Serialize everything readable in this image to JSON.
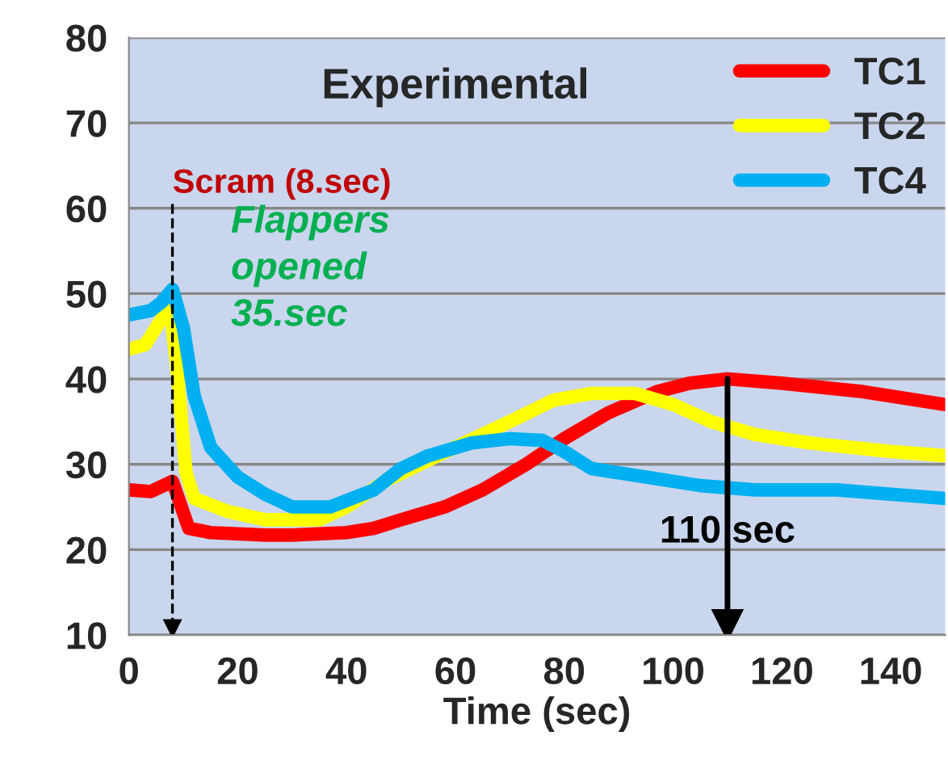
{
  "chart_data": {
    "type": "line",
    "title": "Experimental",
    "xlabel": "Time (sec)",
    "xlim": [
      0,
      150
    ],
    "xticks": [
      0,
      20,
      40,
      60,
      80,
      100,
      120,
      140
    ],
    "ylim": [
      10,
      80
    ],
    "yticks": [
      10,
      20,
      30,
      40,
      50,
      60,
      70,
      80
    ],
    "grid": "y",
    "legend": "top right",
    "line_style": "solid",
    "marker": "none",
    "series": [
      {
        "name": "TC1",
        "color": "#ff0000",
        "x": [
          0,
          4,
          8,
          11,
          15,
          25,
          30,
          40,
          45,
          50,
          58,
          65,
          73,
          80,
          88,
          97,
          103,
          110,
          120,
          135,
          150
        ],
        "values": [
          27,
          26.8,
          28,
          22.5,
          22,
          21.7,
          21.7,
          22,
          22.5,
          23.5,
          25,
          27,
          30,
          33,
          36,
          38.5,
          39.5,
          40,
          39.5,
          38.5,
          37
        ]
      },
      {
        "name": "TC2",
        "color": "#ffff00",
        "x": [
          0,
          3,
          6,
          7.5,
          9,
          10.5,
          12,
          18,
          25,
          35,
          40,
          47,
          60,
          70,
          78,
          85,
          93,
          100,
          107,
          115,
          125,
          140,
          150
        ],
        "values": [
          43.5,
          44,
          47,
          49,
          40,
          29,
          26,
          24.5,
          23.5,
          23.5,
          25,
          28,
          32,
          35,
          37.5,
          38.3,
          38.3,
          37,
          35,
          33.5,
          32.5,
          31.5,
          31
        ]
      },
      {
        "name": "TC4",
        "color": "#00b0f0",
        "x": [
          0,
          4,
          6,
          8,
          10,
          12,
          15,
          20,
          25,
          30,
          37,
          41,
          45,
          50,
          55,
          63,
          70,
          76,
          80,
          85,
          95,
          105,
          115,
          130,
          140,
          150
        ],
        "values": [
          47.5,
          48,
          49,
          50.5,
          46,
          38,
          32,
          28.5,
          26.5,
          25,
          25,
          26,
          27,
          29.5,
          31,
          32.5,
          33,
          32.8,
          31.5,
          29.5,
          28.5,
          27.5,
          27,
          27,
          26.5,
          26
        ]
      }
    ],
    "ref_lines": [
      {
        "axis": "x",
        "value": 8,
        "label": "Scram (8.sec)",
        "color": "#000000",
        "line_style": "dashed"
      },
      {
        "axis": "x",
        "value": 110,
        "label": "110 sec",
        "color": "#000000",
        "line_style": "solid"
      }
    ],
    "annotations": [
      "Flappers opened 35.sec"
    ]
  }
}
